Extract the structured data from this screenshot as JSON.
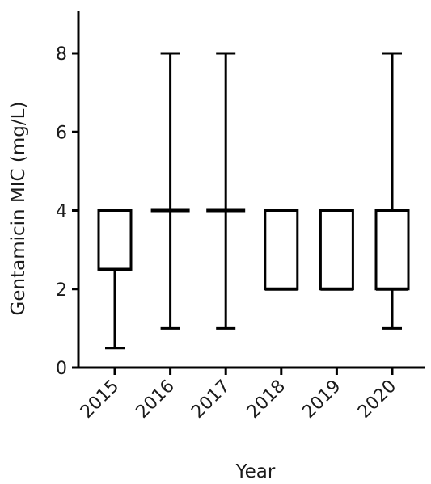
{
  "chart_data": {
    "type": "box",
    "title": "",
    "xlabel": "Year",
    "ylabel": "Gentamicin MIC (mg/L)",
    "ylim": [
      0,
      9
    ],
    "y_ticks": [
      0,
      2,
      4,
      6,
      8
    ],
    "y_tick_labels": [
      "0",
      "2",
      "4",
      "6",
      "8"
    ],
    "categories": [
      "2015",
      "2016",
      "2017",
      "2018",
      "2019",
      "2020"
    ],
    "boxes": [
      {
        "category": "2015",
        "min": 0.5,
        "q1": 2.5,
        "median": 2.5,
        "q3": 4,
        "max": 4
      },
      {
        "category": "2016",
        "min": 1,
        "q1": 4,
        "median": 4,
        "q3": 4,
        "max": 8
      },
      {
        "category": "2017",
        "min": 1,
        "q1": 4,
        "median": 4,
        "q3": 4,
        "max": 8
      },
      {
        "category": "2018",
        "min": 2,
        "q1": 2,
        "median": 2,
        "q3": 4,
        "max": 4
      },
      {
        "category": "2019",
        "min": 2,
        "q1": 2,
        "median": 2,
        "q3": 4,
        "max": 4
      },
      {
        "category": "2020",
        "min": 1,
        "q1": 2,
        "median": 2,
        "q3": 4,
        "max": 8
      }
    ],
    "grid": false,
    "colors": {
      "stroke": "#000000",
      "fill": "#ffffff",
      "text": "#1a1a1a"
    }
  }
}
